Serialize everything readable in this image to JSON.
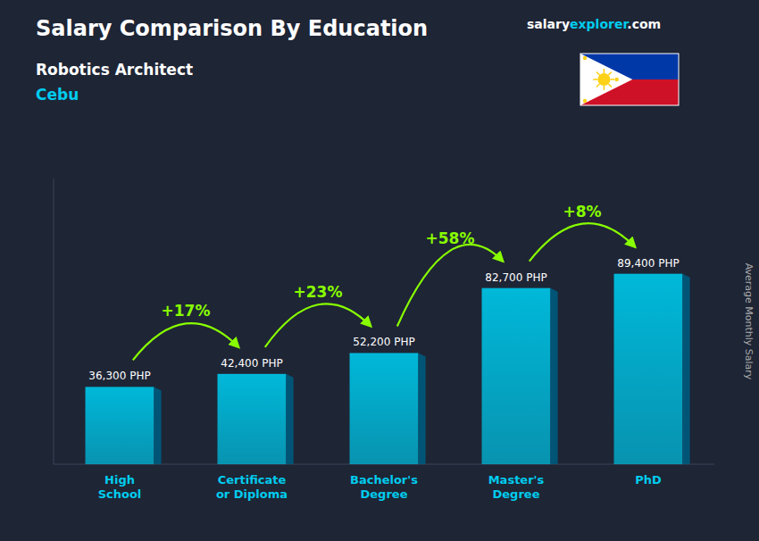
{
  "chart_data": {
    "type": "bar",
    "title": "Salary Comparison By Education",
    "subtitle": [
      "Robotics Architect",
      "Cebu"
    ],
    "source": [
      "salary",
      "explorer",
      ".com"
    ],
    "y_label": "Average Monthly Salary",
    "categories": [
      "High\nSchool",
      "Certificate\nor Diploma",
      "Bachelor's\nDegree",
      "Master's\nDegree",
      "PhD"
    ],
    "values": [
      36300,
      42400,
      52200,
      82700,
      89400
    ],
    "value_labels": [
      "36,300 PHP",
      "42,400 PHP",
      "52,200 PHP",
      "82,700 PHP",
      "89,400 PHP"
    ],
    "data_labels": true,
    "annotations": [
      "+17%",
      "+23%",
      "+58%",
      "+8%"
    ],
    "color": "#00b8d9",
    "ylim": [
      0,
      134100
    ],
    "tick_labels": "x",
    "grid": false
  }
}
